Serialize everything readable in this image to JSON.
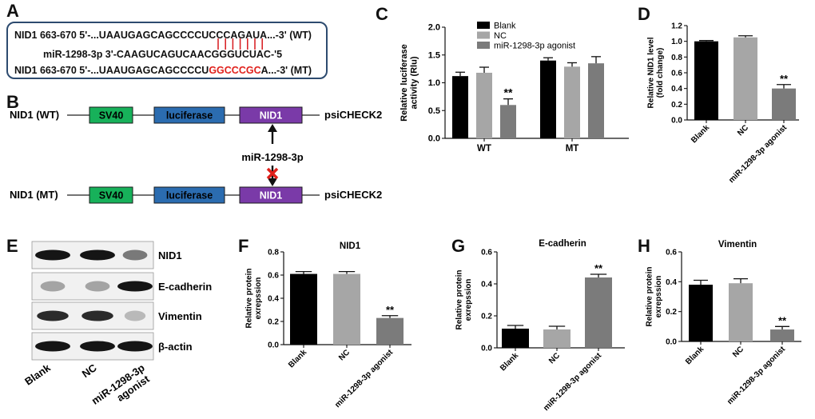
{
  "panel_labels": {
    "A": "A",
    "B": "B",
    "C": "C",
    "D": "D",
    "E": "E",
    "F": "F",
    "G": "G",
    "H": "H"
  },
  "panel_a": {
    "wt_prefix": "NID1 663-670  5'-...UAAUGAGCAGCCCCUCCCAGAUA...-3'",
    "wt_tag": "(WT)",
    "mirna": "miR-1298-3p  3'-CAAGUCAGUCAACGGGUCUAC-'5",
    "mt_prefix": "NID1 663-670  5'-...UAAUGAGCAGCCCCU",
    "mt_red": "GGCCCGC",
    "mt_suffix": "A...-3'",
    "mt_tag": "(MT)",
    "pair_color": "#d7191c"
  },
  "panel_b": {
    "wt_label": "NID1 (WT)",
    "mt_label": "NID1 (MT)",
    "sv40": "SV40",
    "luciferase": "luciferase",
    "nid1": "NID1",
    "vector": "psiCHECK2",
    "mirna": "miR-1298-3p",
    "colors": {
      "sv40": "#17b15a",
      "luciferase": "#2b6cb0",
      "nid1": "#7a3aa8",
      "cross": "#e0201b"
    }
  },
  "panel_e": {
    "rows": [
      "NID1",
      "E-cadherin",
      "Vimentin",
      "β-actin"
    ],
    "lanes": [
      "Blank",
      "NC",
      "miR-1298-3p agonist"
    ],
    "lane_labels": [
      "Blank",
      "NC",
      "miR-1298-3p",
      "agonist"
    ]
  },
  "chart_data": [
    {
      "id": "C",
      "type": "bar",
      "ylabel": "Relative luciferase activity (Rlu)",
      "ylabel_lines": [
        "Relative luciferase",
        "activity (Rlu)"
      ],
      "ylim": [
        0,
        2.0
      ],
      "yticks": [
        "0.0",
        "0.5",
        "1.0",
        "1.5",
        "2.0"
      ],
      "categories": [
        "WT",
        "MT"
      ],
      "legend": "top-left",
      "series": [
        {
          "name": "Blank",
          "color": "#000000",
          "values": [
            1.12,
            1.4
          ],
          "errors": [
            0.07,
            0.05
          ]
        },
        {
          "name": "NC",
          "color": "#a6a6a6",
          "values": [
            1.18,
            1.29
          ],
          "errors": [
            0.1,
            0.07
          ]
        },
        {
          "name": "miR-1298-3p agonist",
          "color": "#7b7b7b",
          "values": [
            0.6,
            1.35
          ],
          "errors": [
            0.11,
            0.12
          ]
        }
      ],
      "annotations": [
        {
          "category": 0,
          "series": 2,
          "text": "**"
        }
      ]
    },
    {
      "id": "D",
      "type": "bar",
      "ylabel": "Relative NID1 level (fold change)",
      "ylabel_lines": [
        "Relative NID1 level",
        "(fold change)"
      ],
      "ylim": [
        0,
        1.2
      ],
      "yticks": [
        "0.0",
        "0.2",
        "0.4",
        "0.6",
        "0.8",
        "1.0",
        "1.2"
      ],
      "categories": [
        "Blank",
        "NC",
        "miR-1298-3p agonist"
      ],
      "colors": [
        "#000000",
        "#a6a6a6",
        "#7b7b7b"
      ],
      "values": [
        1.0,
        1.05,
        0.4
      ],
      "errors": [
        0.01,
        0.02,
        0.05
      ],
      "annotations": [
        {
          "index": 2,
          "text": "**"
        }
      ]
    },
    {
      "id": "F",
      "type": "bar",
      "title": "NID1",
      "ylabel": "Relative protein exrepssion",
      "ylabel_lines": [
        "Relative protein",
        "exrepssion"
      ],
      "ylim": [
        0,
        0.8
      ],
      "yticks": [
        "0.0",
        "0.2",
        "0.4",
        "0.6",
        "0.8"
      ],
      "categories": [
        "Blank",
        "NC",
        "miR-1298-3p agonist"
      ],
      "colors": [
        "#000000",
        "#a6a6a6",
        "#7b7b7b"
      ],
      "values": [
        0.61,
        0.61,
        0.23
      ],
      "errors": [
        0.02,
        0.02,
        0.02
      ],
      "annotations": [
        {
          "index": 2,
          "text": "**"
        }
      ]
    },
    {
      "id": "G",
      "type": "bar",
      "title": "E-cadherin",
      "ylabel": "Relative protein exrepssion",
      "ylabel_lines": [
        "Relative protein",
        "exrepssion"
      ],
      "ylim": [
        0,
        0.6
      ],
      "yticks": [
        "0.0",
        "0.2",
        "0.4",
        "0.6"
      ],
      "categories": [
        "Blank",
        "NC",
        "miR-1298-3p agonist"
      ],
      "colors": [
        "#000000",
        "#a6a6a6",
        "#7b7b7b"
      ],
      "values": [
        0.12,
        0.115,
        0.44
      ],
      "errors": [
        0.02,
        0.02,
        0.02
      ],
      "annotations": [
        {
          "index": 2,
          "text": "**"
        }
      ]
    },
    {
      "id": "H",
      "type": "bar",
      "title": "Vimentin",
      "ylabel": "Relative protein exrepssion",
      "ylabel_lines": [
        "Relative protein",
        "exrepssion"
      ],
      "ylim": [
        0,
        0.6
      ],
      "yticks": [
        "0.0",
        "0.2",
        "0.4",
        "0.6"
      ],
      "categories": [
        "Blank",
        "NC",
        "miR-1298-3p agonist"
      ],
      "colors": [
        "#000000",
        "#a6a6a6",
        "#7b7b7b"
      ],
      "values": [
        0.38,
        0.39,
        0.08
      ],
      "errors": [
        0.03,
        0.03,
        0.02
      ],
      "annotations": [
        {
          "index": 2,
          "text": "**"
        }
      ]
    }
  ]
}
